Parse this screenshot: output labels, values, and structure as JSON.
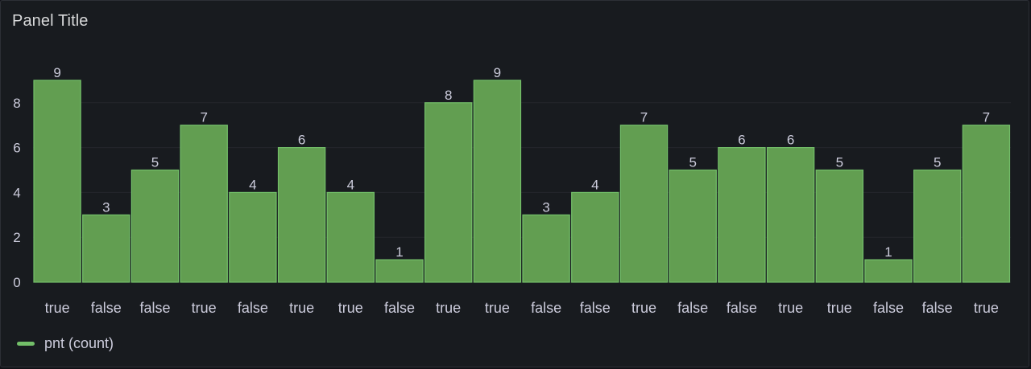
{
  "panel": {
    "title": "Panel Title"
  },
  "colors": {
    "bar_fill": "#629e51",
    "bar_stroke": "#73bf69",
    "grid": "#24262c",
    "text": "#ccccdc"
  },
  "chart_data": {
    "type": "bar",
    "title": "Panel Title",
    "xlabel": "",
    "ylabel": "",
    "categories": [
      "true",
      "false",
      "false",
      "true",
      "false",
      "true",
      "true",
      "false",
      "true",
      "true",
      "false",
      "false",
      "true",
      "false",
      "false",
      "true",
      "true",
      "false",
      "false",
      "true"
    ],
    "series": [
      {
        "name": "pnt (count)",
        "values": [
          9,
          3,
          5,
          7,
          4,
          6,
          4,
          1,
          8,
          9,
          3,
          4,
          7,
          5,
          6,
          6,
          5,
          1,
          5,
          7
        ]
      }
    ],
    "ylim": [
      0,
      9
    ],
    "yticks": [
      0,
      2,
      4,
      6,
      8
    ],
    "grid": true,
    "data_labels": true,
    "legend_position": "bottom-left"
  }
}
